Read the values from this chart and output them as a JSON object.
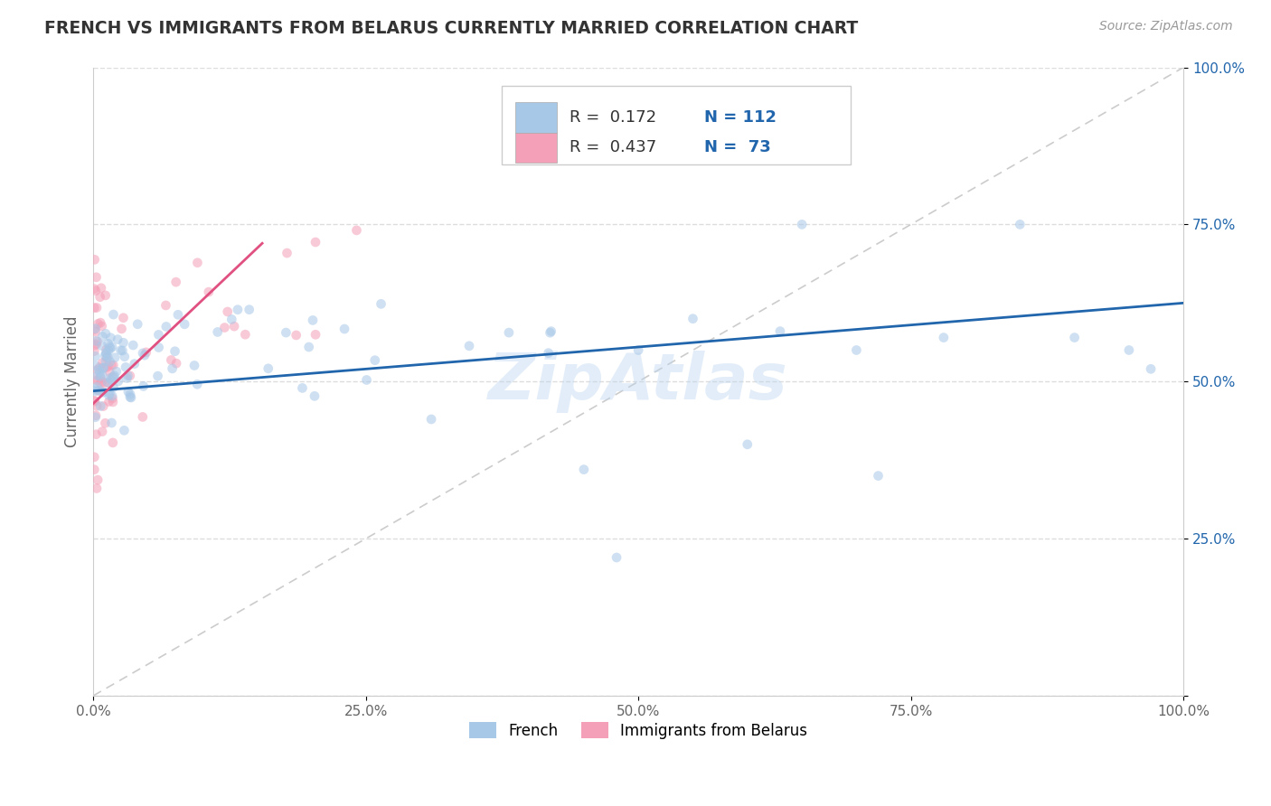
{
  "title": "FRENCH VS IMMIGRANTS FROM BELARUS CURRENTLY MARRIED CORRELATION CHART",
  "source": "Source: ZipAtlas.com",
  "ylabel": "Currently Married",
  "watermark": "ZipAtlas",
  "legend_labels": [
    "French",
    "Immigrants from Belarus"
  ],
  "legend_r": [
    0.172,
    0.437
  ],
  "legend_n": [
    112,
    73
  ],
  "blue_color": "#a8c8e8",
  "pink_color": "#f4a0b8",
  "blue_line_color": "#2166ac",
  "pink_line_color": "#e05080",
  "ref_line_color": "#cccccc",
  "xlim": [
    0.0,
    1.0
  ],
  "ylim": [
    0.0,
    1.0
  ],
  "xticks": [
    0.0,
    0.25,
    0.5,
    0.75,
    1.0
  ],
  "yticks": [
    0.0,
    0.25,
    0.5,
    0.75,
    1.0
  ],
  "xtick_labels": [
    "0.0%",
    "25.0%",
    "50.0%",
    "75.0%",
    "100.0%"
  ],
  "ytick_labels_right": [
    "",
    "25.0%",
    "50.0%",
    "75.0%",
    "100.0%"
  ],
  "background_color": "#ffffff",
  "grid_color": "#dddddd",
  "dot_size": 60,
  "dot_alpha": 0.55,
  "blue_trend_x": [
    0.0,
    1.0
  ],
  "blue_trend_y": [
    0.485,
    0.625
  ],
  "pink_trend_x": [
    0.0,
    0.155
  ],
  "pink_trend_y": [
    0.465,
    0.72
  ]
}
